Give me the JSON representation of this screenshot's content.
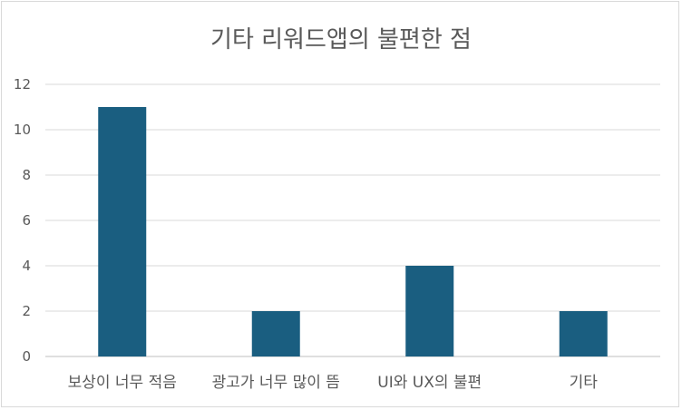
{
  "chart_data": {
    "type": "bar",
    "title": "기타 리워드앱의 불편한 점",
    "xlabel": "",
    "ylabel": "",
    "categories": [
      "보상이 너무 적음",
      "광고가 너무 많이 뜸",
      "UI와 UX의 불편",
      "기타"
    ],
    "values": [
      11,
      2,
      4,
      2
    ],
    "ylim": [
      0,
      12
    ],
    "yticks": [
      0,
      2,
      4,
      6,
      8,
      10,
      12
    ],
    "grid": true,
    "legend": "none",
    "bar_color": "#1a5e80"
  }
}
